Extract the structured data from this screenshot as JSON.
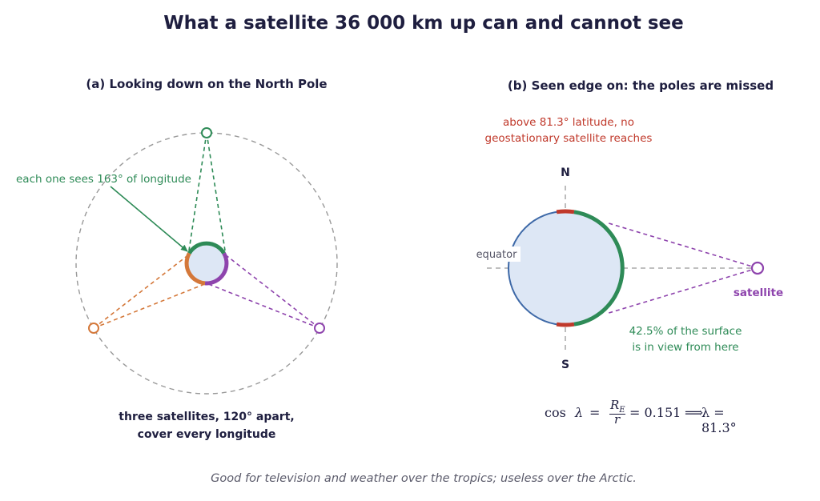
{
  "title": "What a satellite 36 000 km up can and cannot see",
  "panel_a": {
    "heading": "(a) Looking down on the North Pole",
    "annotation": "each one sees 163° of longitude",
    "caption_line1": "three satellites, 120° apart,",
    "caption_line2": "cover every longitude"
  },
  "panel_b": {
    "heading": "(b) Seen edge on: the poles are missed",
    "polar_note_line1": "above 81.3° latitude, no",
    "polar_note_line2": "geostationary satellite reaches",
    "north_label": "N",
    "south_label": "S",
    "equator_label": "equator",
    "satellite_label": "satellite",
    "surface_note_line1": "42.5% of the surface",
    "surface_note_line2": "is in view from here",
    "formula": {
      "cos": "cos",
      "lambda": "λ",
      "equals": "=",
      "numerator": "R",
      "numerator_sub": "E",
      "denominator": "r",
      "value": "= 0.151",
      "implies": "⟹",
      "result": "λ = 81.3°"
    }
  },
  "footer": "Good for television and weather over the tropics; useless over the Arctic.",
  "colors": {
    "green": "#2e8b57",
    "orange": "#d4783a",
    "purple": "#8e44ad",
    "red": "#c0392b",
    "earth_fill": "#dde7f5",
    "earth_stroke": "#3f6aa8",
    "orbit": "#999999"
  }
}
